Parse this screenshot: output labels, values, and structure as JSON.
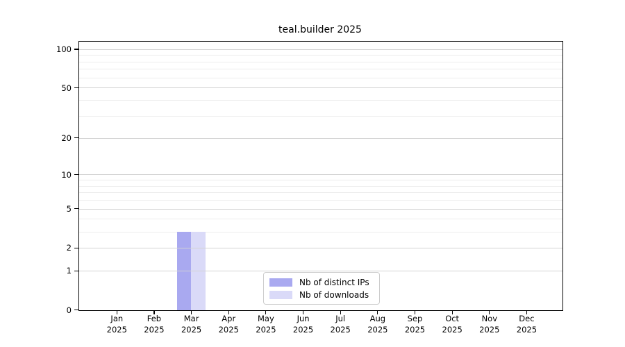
{
  "figure": {
    "background": "#ffffff",
    "spine_color": "#000000"
  },
  "chart_data": {
    "type": "bar",
    "title": "teal.builder 2025",
    "xlabel": "",
    "ylabel": "",
    "categories": [
      "Jan 2025",
      "Feb 2025",
      "Mar 2025",
      "Apr 2025",
      "May 2025",
      "Jun 2025",
      "Jul 2025",
      "Aug 2025",
      "Sep 2025",
      "Oct 2025",
      "Nov 2025",
      "Dec 2025"
    ],
    "series": [
      {
        "name": "Nb of distinct IPs",
        "color": "#a9a9f0",
        "values": [
          0,
          0,
          3,
          0,
          0,
          0,
          0,
          0,
          0,
          0,
          0,
          0
        ]
      },
      {
        "name": "Nb of downloads",
        "color": "#dadaf8",
        "values": [
          0,
          0,
          3,
          0,
          0,
          0,
          0,
          0,
          0,
          0,
          0,
          0
        ]
      }
    ],
    "y_scale": "log1p",
    "ylim": [
      0,
      115
    ],
    "y_ticks_major": [
      0,
      1,
      2,
      5,
      10,
      20,
      50,
      100
    ],
    "y_ticks_minor": [
      3,
      4,
      6,
      7,
      8,
      9,
      30,
      40,
      60,
      70,
      80,
      90
    ],
    "grid": "horizontal",
    "grid_major_color": "#d3d3d3",
    "grid_minor_color": "#ececec",
    "legend_position": "bottom-center-inside"
  }
}
